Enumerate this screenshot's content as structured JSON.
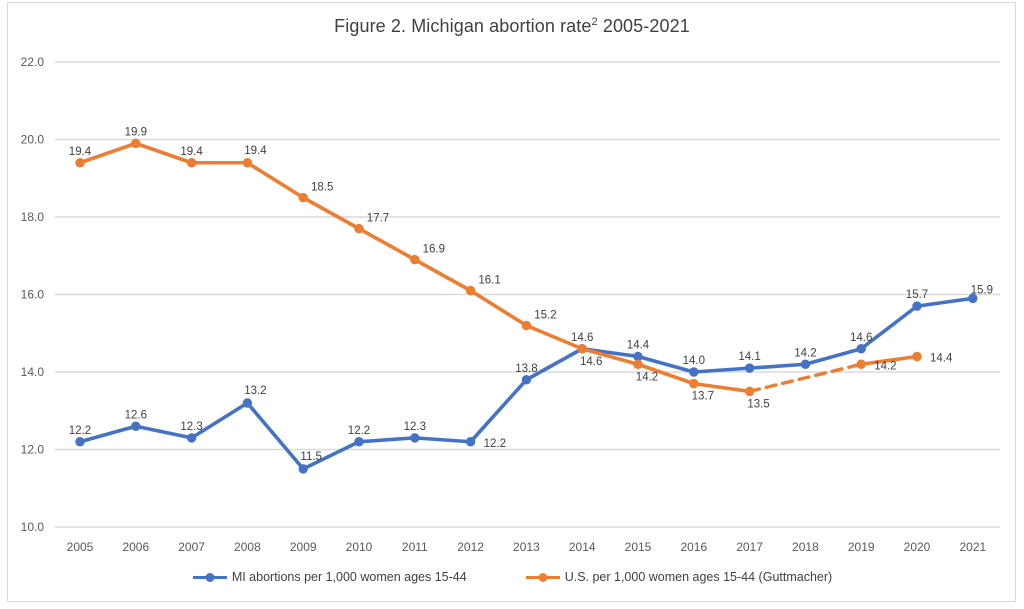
{
  "title": {
    "prefix": "Figure 2. Michigan abortion rate",
    "sup": "2",
    "suffix": " 2005-2021"
  },
  "colors": {
    "mi_blue": "#4472C4",
    "us_orange": "#ED7D31",
    "gridline": "#D9D9D9",
    "axis_text": "#595959",
    "label_text": "#404040",
    "frame": "#D9D9D9",
    "background": "#FFFFFF"
  },
  "legend": {
    "position": "bottom",
    "items": [
      {
        "label": "MI abortions per 1,000 women ages 15-44",
        "color": "#4472C4"
      },
      {
        "label": "U.S. per 1,000 women ages 15-44 (Guttmacher)",
        "color": "#ED7D31"
      }
    ]
  },
  "chart_data": {
    "type": "line",
    "title": "Figure 2. Michigan abortion rate² 2005-2021",
    "xlabel": "",
    "ylabel": "",
    "grid": true,
    "legend_position": "bottom",
    "ylim": [
      10,
      22
    ],
    "ytick_step": 2,
    "ytick_labels": [
      "10.0",
      "12.0",
      "14.0",
      "16.0",
      "18.0",
      "20.0",
      "22.0"
    ],
    "categories": [
      "2005",
      "2006",
      "2007",
      "2008",
      "2009",
      "2010",
      "2011",
      "2012",
      "2013",
      "2014",
      "2015",
      "2016",
      "2017",
      "2018",
      "2019",
      "2020",
      "2021"
    ],
    "series": [
      {
        "name": "MI abortions per 1,000 women ages 15-44",
        "color": "#4472C4",
        "marker": "circle",
        "line_style": "solid",
        "values": [
          12.2,
          12.6,
          12.3,
          13.2,
          11.5,
          12.2,
          12.3,
          12.2,
          13.8,
          14.6,
          14.4,
          14.0,
          14.1,
          14.2,
          14.6,
          15.7,
          15.9
        ],
        "label_pos": [
          "a",
          "a",
          "a",
          "ar2",
          "ar2",
          "a",
          "a",
          "r",
          "a",
          "a",
          "a",
          "a",
          "a",
          "a",
          "a",
          "a",
          "ar3"
        ],
        "dashed_segments": []
      },
      {
        "name": "U.S. per 1,000 women ages 15-44 (Guttmacher)",
        "color": "#ED7D31",
        "marker": "circle",
        "line_style": "solid_with_dashed_gap",
        "values": [
          19.4,
          19.9,
          19.4,
          19.4,
          18.5,
          17.7,
          16.9,
          16.1,
          15.2,
          14.6,
          14.2,
          13.7,
          13.5,
          null,
          14.2,
          14.4,
          null
        ],
        "label_pos": [
          "a",
          "a",
          "a",
          "ar2",
          "ar",
          "ar",
          "ar",
          "ar",
          "ar",
          "b",
          "b",
          "b",
          "b",
          null,
          "r",
          "r",
          null
        ],
        "dashed_segments": [
          [
            12,
            14
          ]
        ]
      }
    ]
  }
}
